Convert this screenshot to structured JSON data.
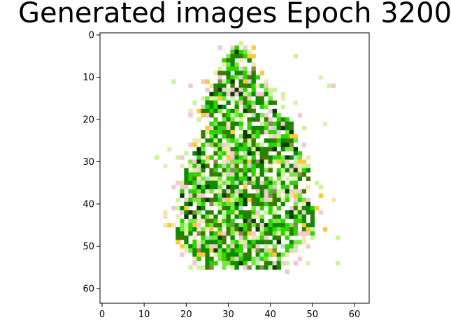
{
  "chart_data": {
    "type": "heatmap",
    "title": "Generated images Epoch 3200",
    "xlabel": "",
    "ylabel": "",
    "image_size": [
      64,
      64
    ],
    "xlim": [
      -0.5,
      63.5
    ],
    "ylim": [
      63.5,
      -0.5
    ],
    "x_ticks": [
      0,
      10,
      20,
      30,
      40,
      50,
      60
    ],
    "y_ticks": [
      0,
      10,
      20,
      30,
      40,
      50,
      60
    ],
    "x_tick_labels": [
      "0",
      "10",
      "20",
      "30",
      "40",
      "50",
      "60"
    ],
    "y_tick_labels": [
      "0",
      "10",
      "20",
      "30",
      "40",
      "50",
      "60"
    ],
    "background_color": "#ffffff",
    "palette": [
      "#0c8a00",
      "#2fd400",
      "#79e640",
      "#3f7a00",
      "#0a3a00",
      "#c9f59a",
      "#f0e8b0",
      "#f2c8d2",
      "#ffc933",
      "#8a8a4a",
      "#d8f0ff",
      "#b0e0c0"
    ],
    "seed": 3200
  }
}
